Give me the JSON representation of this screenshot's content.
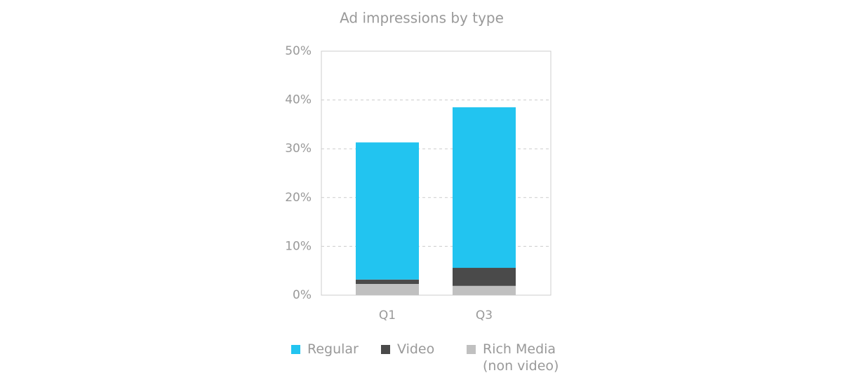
{
  "chart_data": {
    "type": "stacked_bar",
    "title": "Ad impressions by type",
    "categories": [
      "Q1",
      "Q3"
    ],
    "series": [
      {
        "name": "Regular",
        "color": "#22c4f0",
        "values": [
          28.1,
          32.9
        ]
      },
      {
        "name": "Video",
        "color": "#4a4a4a",
        "values": [
          0.9,
          3.7
        ]
      },
      {
        "name": "Rich Media (non video)",
        "color": "#c0c0c0",
        "values": [
          2.3,
          1.9
        ]
      }
    ],
    "ylim": [
      0,
      50
    ],
    "yticks": [
      {
        "value": 0,
        "label": "0%"
      },
      {
        "value": 10,
        "label": "10%"
      },
      {
        "value": 20,
        "label": "20%"
      },
      {
        "value": 30,
        "label": "30%"
      },
      {
        "value": 40,
        "label": "40%"
      },
      {
        "value": 50,
        "label": "50%"
      }
    ],
    "grid": true
  }
}
